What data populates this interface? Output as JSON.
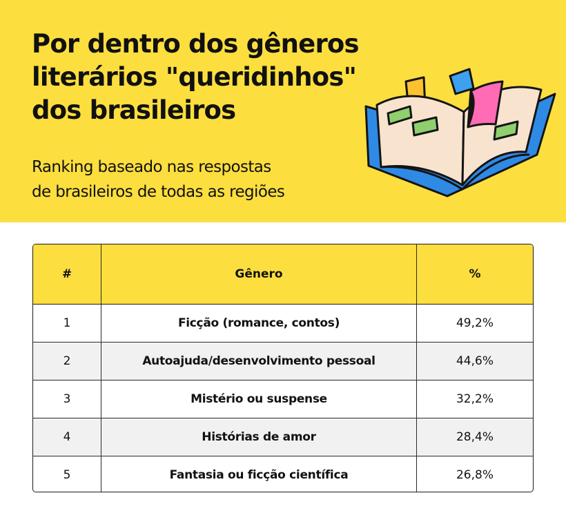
{
  "header": {
    "title_lines": [
      "Por dentro dos gêneros",
      "literários \"queridinhos\"",
      "dos brasileiros"
    ],
    "subtitle_lines": [
      "Ranking baseado nas respostas",
      "de brasileiros de todas as regiões"
    ]
  },
  "illustration": {
    "icon": "open-book-icon",
    "colors": {
      "cover": "#2f8ae6",
      "pages": "#f8e3cf",
      "green_blocks": "#8fcf6e",
      "bookmark_left": "#fcc22e",
      "bookmark_right": "#3ea0f0",
      "sticky_note": "#ff6bb5",
      "outline": "#141414"
    }
  },
  "colors": {
    "accent_yellow": "#fcde3e",
    "row_alt": "#f1f1f1",
    "text": "#111111"
  },
  "chart_data": {
    "type": "table",
    "columns": [
      "#",
      "Gênero",
      "%"
    ],
    "rows": [
      {
        "rank": "1",
        "genre": "Ficção (romance, contos)",
        "percent": "49,2%"
      },
      {
        "rank": "2",
        "genre": "Autoajuda/desenvolvimento pessoal",
        "percent": "44,6%"
      },
      {
        "rank": "3",
        "genre": "Mistério ou suspense",
        "percent": "32,2%"
      },
      {
        "rank": "4",
        "genre": "Histórias de amor",
        "percent": "28,4%"
      },
      {
        "rank": "5",
        "genre": "Fantasia ou ficção científica",
        "percent": "26,8%"
      }
    ]
  }
}
